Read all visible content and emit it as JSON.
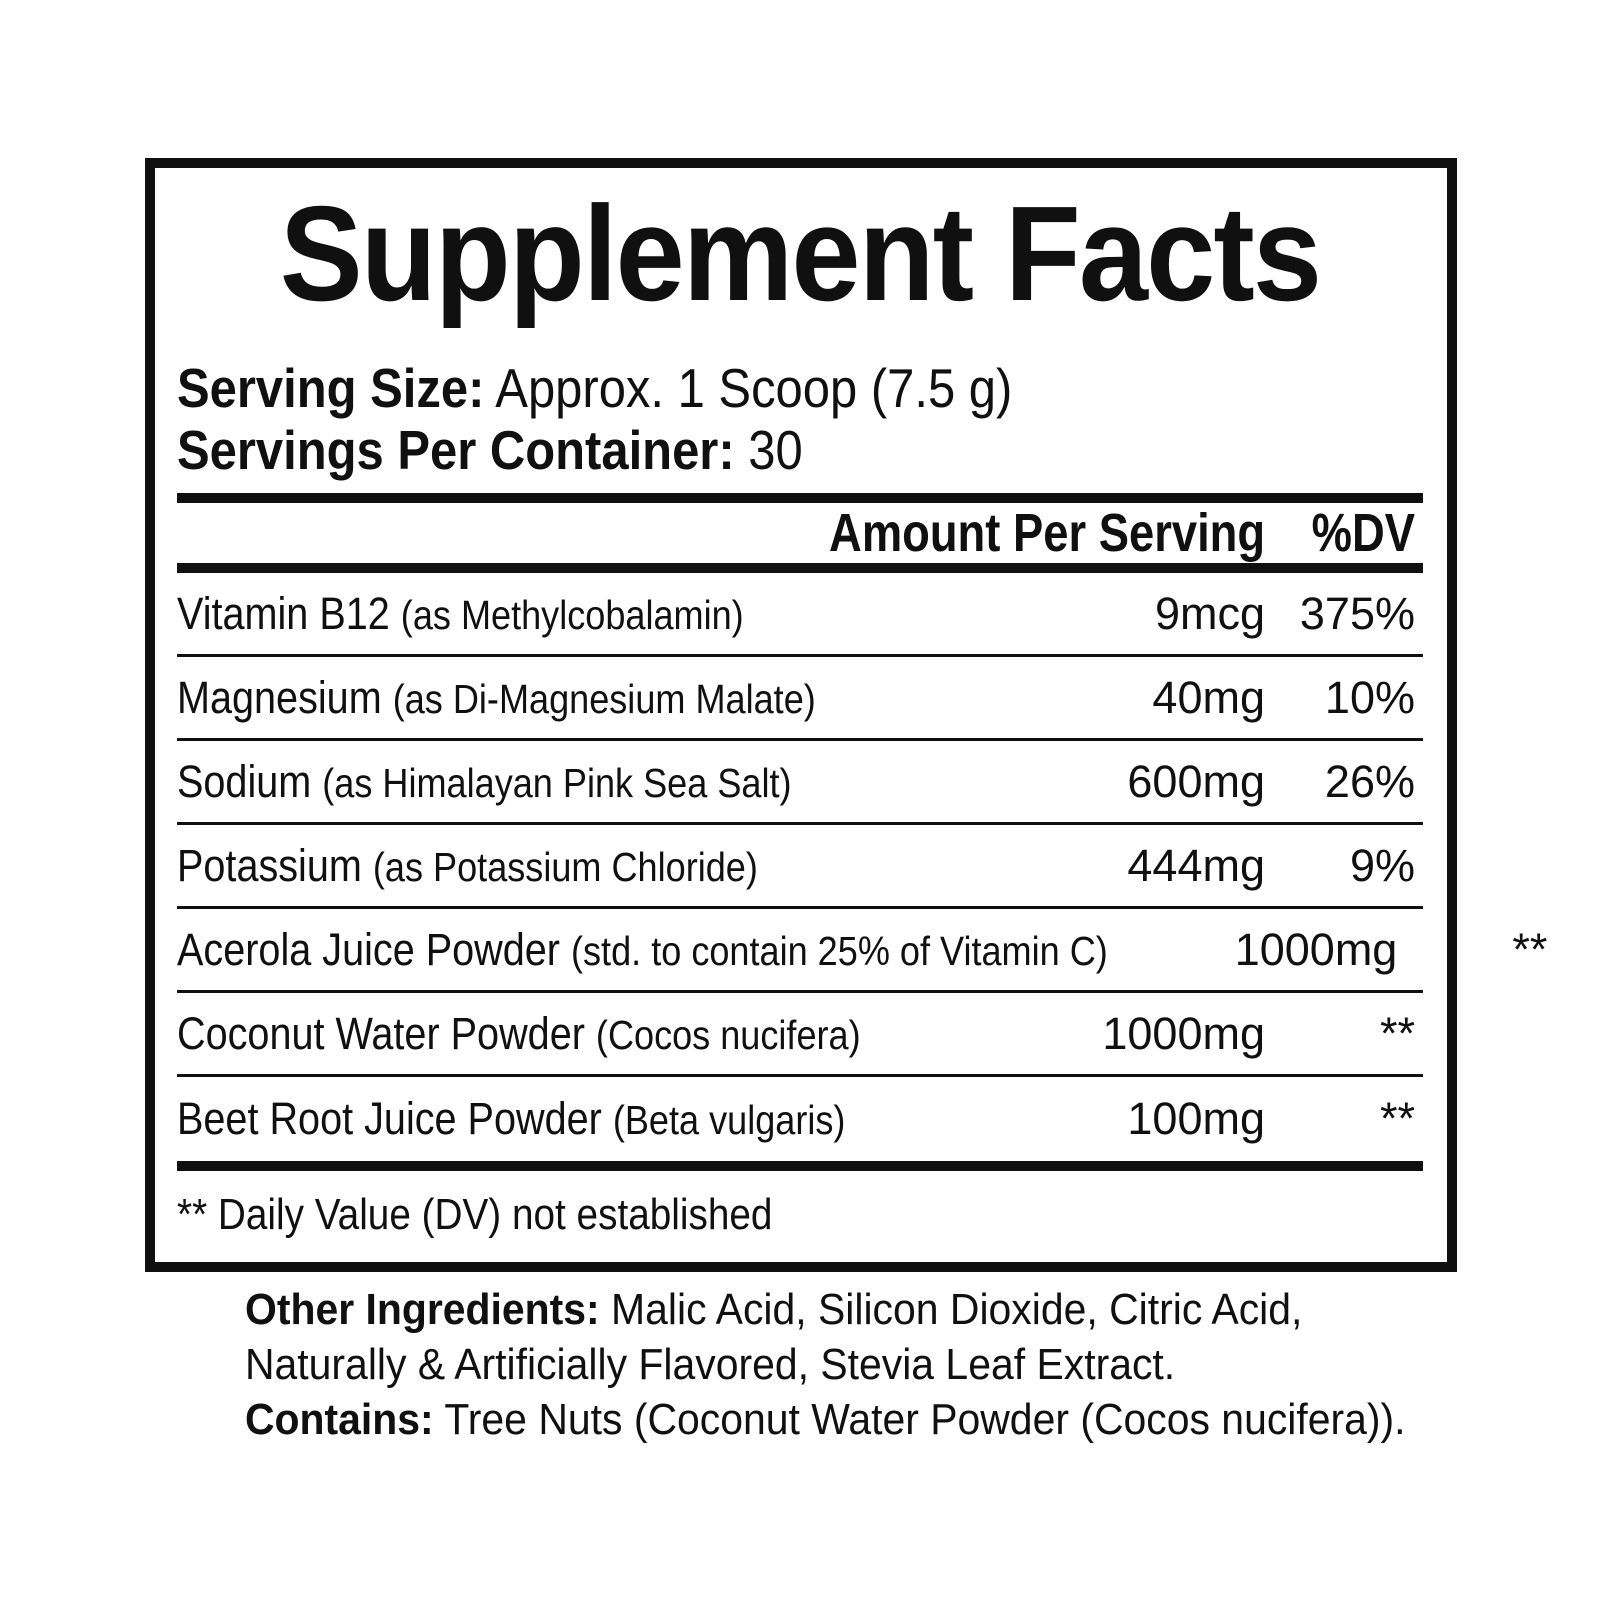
{
  "colors": {
    "ink": "#101010",
    "background": "#ffffff"
  },
  "panel": {
    "title": "Supplement Facts",
    "serving_size": {
      "label": "Serving Size:",
      "value": "Approx. 1 Scoop (7.5 g)"
    },
    "servings_per_container": {
      "label": "Servings Per Container:",
      "value": "30"
    },
    "columns": {
      "amount": "Amount Per Serving",
      "dv": "%DV"
    },
    "rows": [
      {
        "name": "Vitamin B12",
        "detail": "(as Methylcobalamin)",
        "amount": "9mcg",
        "dv": "375%"
      },
      {
        "name": "Magnesium",
        "detail": "(as Di-Magnesium Malate)",
        "amount": "40mg",
        "dv": "10%"
      },
      {
        "name": "Sodium",
        "detail": "(as Himalayan Pink Sea Salt)",
        "amount": "600mg",
        "dv": "26%"
      },
      {
        "name": "Potassium",
        "detail": "(as Potassium Chloride)",
        "amount": "444mg",
        "dv": "9%"
      },
      {
        "name": "Acerola Juice Powder",
        "detail": "(std. to contain 25% of Vitamin C)",
        "amount": "1000mg",
        "dv": "**"
      },
      {
        "name": "Coconut Water Powder",
        "detail": "(Cocos nucifera)",
        "amount": "1000mg",
        "dv": "**"
      },
      {
        "name": "Beet Root Juice Powder",
        "detail": "(Beta vulgaris)",
        "amount": "100mg",
        "dv": "**"
      }
    ],
    "footnote": "** Daily Value (DV) not established"
  },
  "other_ingredients": {
    "label": "Other Ingredients:",
    "line1": "Malic Acid, Silicon Dioxide, Citric Acid,",
    "line2": "Naturally & Artificially Flavored, Stevia Leaf Extract.",
    "contains_label": "Contains:",
    "contains_text": "Tree Nuts (Coconut Water Powder (Cocos nucifera))."
  }
}
